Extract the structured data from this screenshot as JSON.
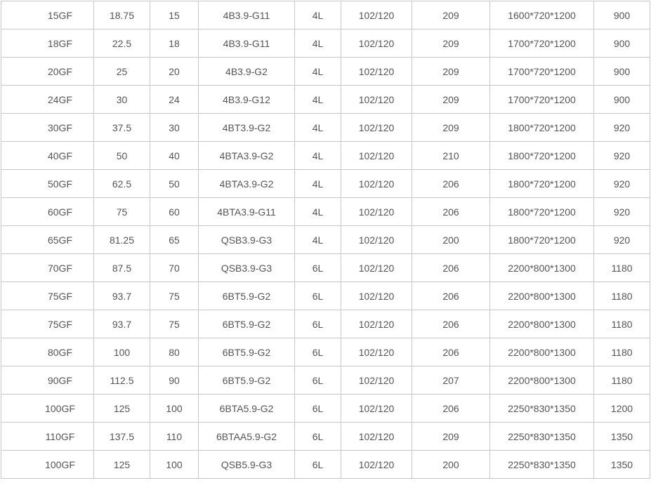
{
  "table": {
    "rows": [
      [
        "15GF",
        "18.75",
        "15",
        "4B3.9-G11",
        "4L",
        "102/120",
        "209",
        "1600*720*1200",
        "900"
      ],
      [
        "18GF",
        "22.5",
        "18",
        "4B3.9-G11",
        "4L",
        "102/120",
        "209",
        "1700*720*1200",
        "900"
      ],
      [
        "20GF",
        "25",
        "20",
        "4B3.9-G2",
        "4L",
        "102/120",
        "209",
        "1700*720*1200",
        "900"
      ],
      [
        "24GF",
        "30",
        "24",
        "4B3.9-G12",
        "4L",
        "102/120",
        "209",
        "1700*720*1200",
        "900"
      ],
      [
        "30GF",
        "37.5",
        "30",
        "4BT3.9-G2",
        "4L",
        "102/120",
        "209",
        "1800*720*1200",
        "920"
      ],
      [
        "40GF",
        "50",
        "40",
        "4BTA3.9-G2",
        "4L",
        "102/120",
        "210",
        "1800*720*1200",
        "920"
      ],
      [
        "50GF",
        "62.5",
        "50",
        "4BTA3.9-G2",
        "4L",
        "102/120",
        "206",
        "1800*720*1200",
        "920"
      ],
      [
        "60GF",
        "75",
        "60",
        "4BTA3.9-G11",
        "4L",
        "102/120",
        "206",
        "1800*720*1200",
        "920"
      ],
      [
        "65GF",
        "81.25",
        "65",
        "QSB3.9-G3",
        "4L",
        "102/120",
        "200",
        "1800*720*1200",
        "920"
      ],
      [
        "70GF",
        "87.5",
        "70",
        "QSB3.9-G3",
        "6L",
        "102/120",
        "206",
        "2200*800*1300",
        "1180"
      ],
      [
        "75GF",
        "93.7",
        "75",
        "6BT5.9-G2",
        "6L",
        "102/120",
        "206",
        "2200*800*1300",
        "1180"
      ],
      [
        "75GF",
        "93.7",
        "75",
        "6BT5.9-G2",
        "6L",
        "102/120",
        "206",
        "2200*800*1300",
        "1180"
      ],
      [
        "80GF",
        "100",
        "80",
        "6BT5.9-G2",
        "6L",
        "102/120",
        "206",
        "2200*800*1300",
        "1180"
      ],
      [
        "90GF",
        "112.5",
        "90",
        "6BT5.9-G2",
        "6L",
        "102/120",
        "207",
        "2200*800*1300",
        "1180"
      ],
      [
        "100GF",
        "125",
        "100",
        "6BTA5.9-G2",
        "6L",
        "102/120",
        "206",
        "2250*830*1350",
        "1200"
      ],
      [
        "110GF",
        "137.5",
        "110",
        "6BTAA5.9-G2",
        "6L",
        "102/120",
        "209",
        "2250*830*1350",
        "1350"
      ],
      [
        "100GF",
        "125",
        "100",
        "QSB5.9-G3",
        "6L",
        "102/120",
        "200",
        "2250*830*1350",
        "1350"
      ]
    ]
  }
}
